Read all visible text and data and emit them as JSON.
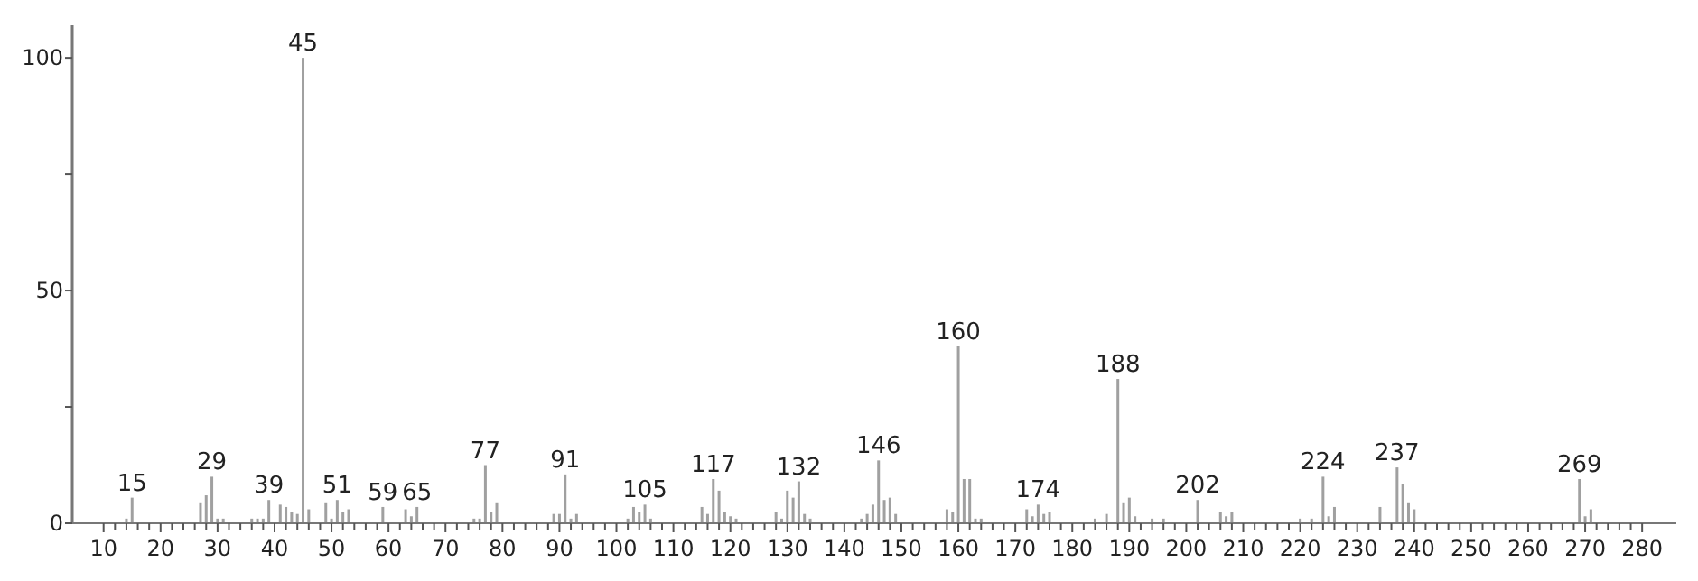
{
  "chart_data": {
    "type": "bar",
    "x": [
      14,
      15,
      27,
      28,
      29,
      30,
      31,
      36,
      37,
      38,
      39,
      41,
      42,
      43,
      44,
      45,
      46,
      49,
      50,
      51,
      52,
      53,
      59,
      63,
      64,
      65,
      75,
      76,
      77,
      78,
      79,
      89,
      90,
      91,
      92,
      93,
      102,
      103,
      104,
      105,
      106,
      115,
      116,
      117,
      118,
      119,
      120,
      121,
      128,
      129,
      130,
      131,
      132,
      133,
      134,
      143,
      144,
      145,
      146,
      147,
      148,
      149,
      158,
      159,
      160,
      161,
      162,
      163,
      164,
      172,
      173,
      174,
      175,
      176,
      184,
      186,
      188,
      189,
      190,
      191,
      194,
      196,
      202,
      206,
      207,
      208,
      220,
      222,
      224,
      225,
      226,
      234,
      237,
      238,
      239,
      240,
      269,
      270,
      271
    ],
    "values": [
      1,
      5.5,
      4.5,
      6,
      10,
      1,
      1,
      1,
      1,
      1,
      5,
      4,
      3.5,
      2.5,
      2,
      100,
      3,
      4.5,
      1,
      5,
      2.5,
      3,
      3.5,
      3,
      1.5,
      3.5,
      1,
      1,
      12.5,
      2.5,
      4.5,
      2,
      2,
      10.5,
      1,
      2,
      1,
      3.5,
      2.5,
      4,
      1,
      3.5,
      2,
      9.5,
      7,
      2.5,
      1.5,
      1,
      2.5,
      1,
      7,
      5.5,
      9,
      2,
      1,
      1,
      2,
      4,
      13.5,
      5,
      5.5,
      2,
      3,
      2.5,
      38,
      9.5,
      9.5,
      1,
      1,
      3,
      1.5,
      4,
      2,
      2.5,
      1,
      2,
      31,
      4.5,
      5.5,
      1.5,
      1,
      1,
      5,
      2.5,
      1.5,
      2.5,
      1,
      1,
      10,
      1.5,
      3.5,
      3.5,
      12,
      8.5,
      4.5,
      3,
      9.5,
      1.5,
      3
    ],
    "color": "#a0a0a0",
    "annotations": [
      {
        "text": "15",
        "x": 15,
        "y": 5.5
      },
      {
        "text": "29",
        "x": 29,
        "y": 10
      },
      {
        "text": "39",
        "x": 39,
        "y": 5
      },
      {
        "text": "45",
        "x": 45,
        "y": 100
      },
      {
        "text": "51",
        "x": 51,
        "y": 5
      },
      {
        "text": "59",
        "x": 59,
        "y": 3.5
      },
      {
        "text": "65",
        "x": 65,
        "y": 3.5
      },
      {
        "text": "77",
        "x": 77,
        "y": 12.5
      },
      {
        "text": "91",
        "x": 91,
        "y": 10.5
      },
      {
        "text": "105",
        "x": 105,
        "y": 4
      },
      {
        "text": "117",
        "x": 117,
        "y": 9.5
      },
      {
        "text": "132",
        "x": 132,
        "y": 9
      },
      {
        "text": "146",
        "x": 146,
        "y": 13.5
      },
      {
        "text": "160",
        "x": 160,
        "y": 38
      },
      {
        "text": "174",
        "x": 174,
        "y": 4
      },
      {
        "text": "188",
        "x": 188,
        "y": 31
      },
      {
        "text": "202",
        "x": 202,
        "y": 5
      },
      {
        "text": "224",
        "x": 224,
        "y": 10
      },
      {
        "text": "237",
        "x": 237,
        "y": 12
      },
      {
        "text": "269",
        "x": 269,
        "y": 9.5
      }
    ],
    "xlim": [
      4.5,
      286
    ],
    "ylim": [
      0,
      107
    ],
    "xticks": [
      10,
      {
        "value": 12,
        "label": null
      },
      {
        "value": 14,
        "label": null
      },
      {
        "value": 16,
        "label": null
      },
      {
        "value": 18,
        "label": null
      },
      20,
      {
        "value": 22,
        "label": null
      },
      {
        "value": 24,
        "label": null
      },
      {
        "value": 26,
        "label": null
      },
      {
        "value": 28,
        "label": null
      },
      30,
      {
        "value": 32,
        "label": null
      },
      {
        "value": 34,
        "label": null
      },
      {
        "value": 36,
        "label": null
      },
      {
        "value": 38,
        "label": null
      },
      40,
      {
        "value": 42,
        "label": null
      },
      {
        "value": 44,
        "label": null
      },
      {
        "value": 46,
        "label": null
      },
      {
        "value": 48,
        "label": null
      },
      50,
      {
        "value": 52,
        "label": null
      },
      {
        "value": 54,
        "label": null
      },
      {
        "value": 56,
        "label": null
      },
      {
        "value": 58,
        "label": null
      },
      60,
      {
        "value": 62,
        "label": null
      },
      {
        "value": 64,
        "label": null
      },
      {
        "value": 66,
        "label": null
      },
      {
        "value": 68,
        "label": null
      },
      70,
      {
        "value": 72,
        "label": null
      },
      {
        "value": 74,
        "label": null
      },
      {
        "value": 76,
        "label": null
      },
      {
        "value": 78,
        "label": null
      },
      80,
      {
        "value": 82,
        "label": null
      },
      {
        "value": 84,
        "label": null
      },
      {
        "value": 86,
        "label": null
      },
      {
        "value": 88,
        "label": null
      },
      90,
      {
        "value": 92,
        "label": null
      },
      {
        "value": 94,
        "label": null
      },
      {
        "value": 96,
        "label": null
      },
      {
        "value": 98,
        "label": null
      },
      100,
      {
        "value": 102,
        "label": null
      },
      {
        "value": 104,
        "label": null
      },
      {
        "value": 106,
        "label": null
      },
      {
        "value": 108,
        "label": null
      },
      110,
      {
        "value": 112,
        "label": null
      },
      {
        "value": 114,
        "label": null
      },
      {
        "value": 116,
        "label": null
      },
      {
        "value": 118,
        "label": null
      },
      120,
      {
        "value": 122,
        "label": null
      },
      {
        "value": 124,
        "label": null
      },
      {
        "value": 126,
        "label": null
      },
      {
        "value": 128,
        "label": null
      },
      130,
      {
        "value": 132,
        "label": null
      },
      {
        "value": 134,
        "label": null
      },
      {
        "value": 136,
        "label": null
      },
      {
        "value": 138,
        "label": null
      },
      140,
      {
        "value": 142,
        "label": null
      },
      {
        "value": 144,
        "label": null
      },
      {
        "value": 146,
        "label": null
      },
      {
        "value": 148,
        "label": null
      },
      150,
      {
        "value": 152,
        "label": null
      },
      {
        "value": 154,
        "label": null
      },
      {
        "value": 156,
        "label": null
      },
      {
        "value": 158,
        "label": null
      },
      160,
      {
        "value": 162,
        "label": null
      },
      {
        "value": 164,
        "label": null
      },
      {
        "value": 166,
        "label": null
      },
      {
        "value": 168,
        "label": null
      },
      170,
      {
        "value": 172,
        "label": null
      },
      {
        "value": 174,
        "label": null
      },
      {
        "value": 176,
        "label": null
      },
      {
        "value": 178,
        "label": null
      },
      180,
      {
        "value": 182,
        "label": null
      },
      {
        "value": 184,
        "label": null
      },
      {
        "value": 186,
        "label": null
      },
      {
        "value": 188,
        "label": null
      },
      190,
      {
        "value": 192,
        "label": null
      },
      {
        "value": 194,
        "label": null
      },
      {
        "value": 196,
        "label": null
      },
      {
        "value": 198,
        "label": null
      },
      200,
      {
        "value": 202,
        "label": null
      },
      {
        "value": 204,
        "label": null
      },
      {
        "value": 206,
        "label": null
      },
      {
        "value": 208,
        "label": null
      },
      210,
      {
        "value": 212,
        "label": null
      },
      {
        "value": 214,
        "label": null
      },
      {
        "value": 216,
        "label": null
      },
      {
        "value": 218,
        "label": null
      },
      220,
      {
        "value": 222,
        "label": null
      },
      {
        "value": 224,
        "label": null
      },
      {
        "value": 226,
        "label": null
      },
      {
        "value": 228,
        "label": null
      },
      230,
      {
        "value": 232,
        "label": null
      },
      {
        "value": 234,
        "label": null
      },
      {
        "value": 236,
        "label": null
      },
      {
        "value": 238,
        "label": null
      },
      240,
      {
        "value": 242,
        "label": null
      },
      {
        "value": 244,
        "label": null
      },
      {
        "value": 246,
        "label": null
      },
      {
        "value": 248,
        "label": null
      },
      250,
      {
        "value": 252,
        "label": null
      },
      {
        "value": 254,
        "label": null
      },
      {
        "value": 256,
        "label": null
      },
      {
        "value": 258,
        "label": null
      },
      260,
      {
        "value": 262,
        "label": null
      },
      {
        "value": 264,
        "label": null
      },
      {
        "value": 266,
        "label": null
      },
      {
        "value": 268,
        "label": null
      },
      270,
      {
        "value": 272,
        "label": null
      },
      {
        "value": 274,
        "label": null
      },
      {
        "value": 276,
        "label": null
      },
      {
        "value": 278,
        "label": null
      },
      280
    ],
    "yticks": [
      0,
      {
        "value": 25,
        "label": null
      },
      50,
      {
        "value": 75,
        "label": null
      },
      100
    ],
    "grid": false
  }
}
